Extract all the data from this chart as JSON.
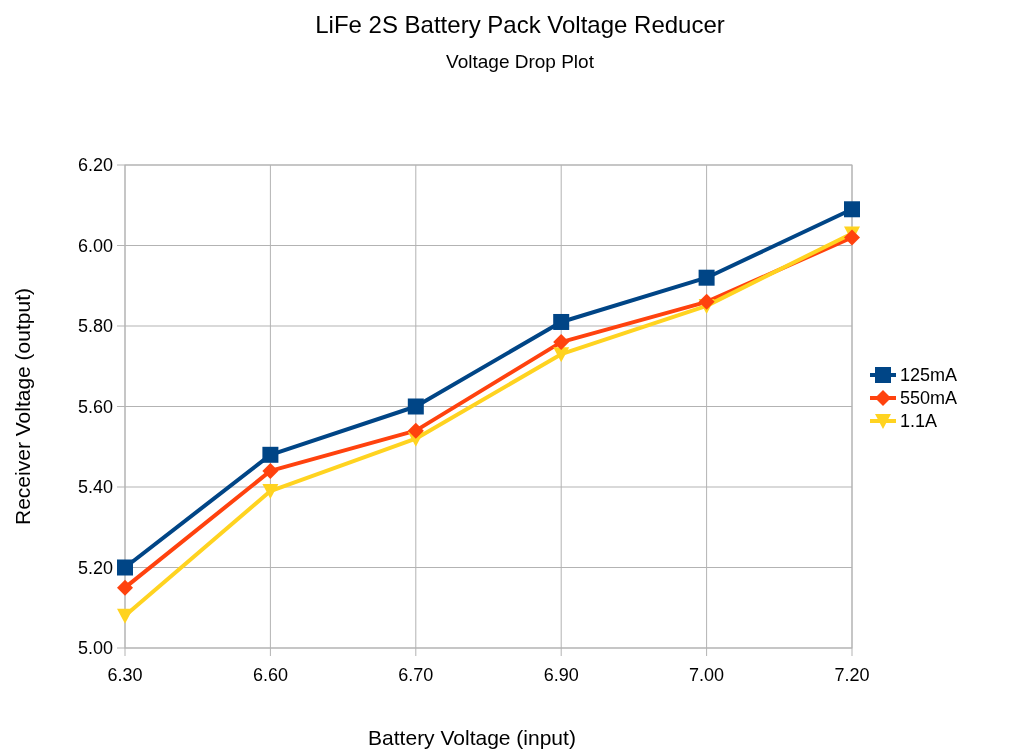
{
  "chart_data": {
    "type": "line",
    "title": "LiFe 2S Battery Pack Voltage Reducer",
    "subtitle": "Voltage Drop Plot",
    "xlabel": "Battery Voltage (input)",
    "ylabel": "Receiver Voltage (output)",
    "categories": [
      "6.30",
      "6.60",
      "6.70",
      "6.90",
      "7.00",
      "7.20"
    ],
    "series": [
      {
        "name": "125mA",
        "color": "#004586",
        "marker": "square",
        "values": [
          5.2,
          5.48,
          5.6,
          5.81,
          5.92,
          6.09
        ]
      },
      {
        "name": "550mA",
        "color": "#ff420e",
        "marker": "diamond",
        "values": [
          5.15,
          5.44,
          5.54,
          5.76,
          5.86,
          6.02
        ]
      },
      {
        "name": "1.1A",
        "color": "#ffd320",
        "marker": "triangle",
        "values": [
          5.08,
          5.39,
          5.52,
          5.73,
          5.85,
          6.03
        ]
      }
    ],
    "ylim": [
      5.0,
      6.2
    ],
    "yticks": [
      {
        "value": 5.0,
        "label": "5.00"
      },
      {
        "value": 5.2,
        "label": "5.20"
      },
      {
        "value": 5.4,
        "label": "5.40"
      },
      {
        "value": 5.6,
        "label": "5.60"
      },
      {
        "value": 5.8,
        "label": "5.80"
      },
      {
        "value": 6.0,
        "label": "6.00"
      },
      {
        "value": 6.2,
        "label": "6.20"
      }
    ],
    "grid": true,
    "legend": "right",
    "line_style": "solid"
  }
}
